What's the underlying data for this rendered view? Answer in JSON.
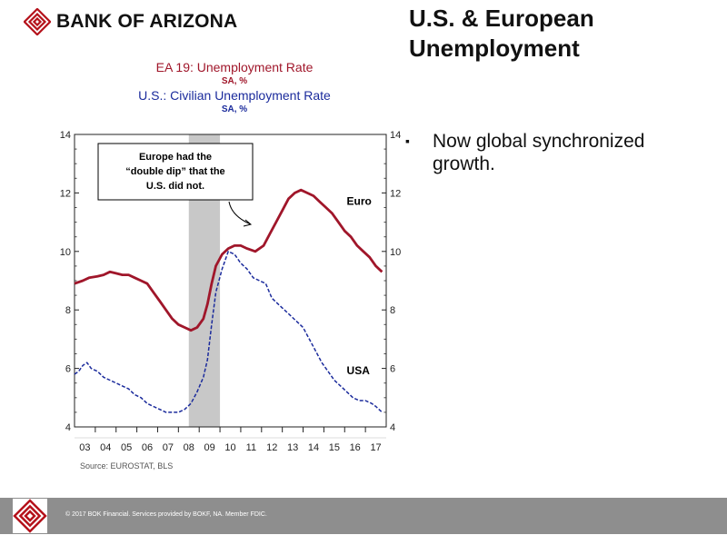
{
  "brand": {
    "name": "BANK OF ARIZONA",
    "color": "#b5121b",
    "logo_icon": "bank-of-arizona-logo-icon"
  },
  "slide": {
    "title": "U.S. & European Unemployment"
  },
  "bullets": [
    {
      "text": "Now global synchronized growth."
    }
  ],
  "footer": {
    "text": "© 2017 BOK Financial. Services provided by BOKF, NA. Member FDIC.",
    "bar_color": "#8e8e8e"
  },
  "chart_data": {
    "type": "line",
    "title": "EA 19: Unemployment Rate",
    "title_sub": "SA, %",
    "title2": "U.S.: Civilian Unemployment Rate",
    "title2_sub": "SA, %",
    "source": "Source:  EUROSTAT, BLS",
    "x_ticks": [
      "03",
      "04",
      "05",
      "06",
      "07",
      "08",
      "09",
      "10",
      "11",
      "12",
      "13",
      "14",
      "15",
      "16",
      "17"
    ],
    "xlim": [
      2002.5,
      2017.5
    ],
    "ylim": [
      4,
      14
    ],
    "y_ticks": [
      4,
      6,
      8,
      10,
      12,
      14
    ],
    "shaded_region": [
      2008.0,
      2009.5
    ],
    "grid": false,
    "annotation": "Europe had the “double dip” that the U.S. did not.",
    "series": [
      {
        "name": "Euro",
        "color": "#a0162a",
        "style": "solid",
        "x": [
          2002.5,
          2002.9,
          2003.2,
          2003.6,
          2003.9,
          2004.2,
          2004.5,
          2004.8,
          2005.1,
          2005.4,
          2005.7,
          2006.0,
          2006.3,
          2006.6,
          2006.9,
          2007.2,
          2007.5,
          2007.8,
          2008.1,
          2008.4,
          2008.7,
          2008.9,
          2009.1,
          2009.3,
          2009.6,
          2009.9,
          2010.2,
          2010.5,
          2010.8,
          2011.2,
          2011.6,
          2011.9,
          2012.2,
          2012.5,
          2012.8,
          2013.1,
          2013.4,
          2013.7,
          2014.0,
          2014.3,
          2014.6,
          2014.9,
          2015.2,
          2015.5,
          2015.8,
          2016.1,
          2016.4,
          2016.7,
          2017.0,
          2017.3
        ],
        "values": [
          8.9,
          9.0,
          9.1,
          9.15,
          9.2,
          9.3,
          9.25,
          9.2,
          9.2,
          9.1,
          9.0,
          8.9,
          8.6,
          8.3,
          8.0,
          7.7,
          7.5,
          7.4,
          7.3,
          7.4,
          7.7,
          8.2,
          8.9,
          9.5,
          9.9,
          10.1,
          10.2,
          10.2,
          10.1,
          10.0,
          10.2,
          10.6,
          11.0,
          11.4,
          11.8,
          12.0,
          12.1,
          12.0,
          11.9,
          11.7,
          11.5,
          11.3,
          11.0,
          10.7,
          10.5,
          10.2,
          10.0,
          9.8,
          9.5,
          9.3
        ]
      },
      {
        "name": "USA",
        "color": "#1b2b9c",
        "style": "dashed",
        "x": [
          2002.5,
          2002.7,
          2002.9,
          2003.1,
          2003.3,
          2003.6,
          2003.9,
          2004.2,
          2004.5,
          2004.8,
          2005.1,
          2005.4,
          2005.7,
          2006.0,
          2006.3,
          2006.6,
          2006.9,
          2007.2,
          2007.5,
          2007.8,
          2008.1,
          2008.4,
          2008.7,
          2008.9,
          2009.1,
          2009.3,
          2009.6,
          2009.9,
          2010.2,
          2010.5,
          2010.8,
          2011.1,
          2011.4,
          2011.7,
          2012.0,
          2012.3,
          2012.6,
          2012.9,
          2013.2,
          2013.5,
          2013.8,
          2014.1,
          2014.4,
          2014.7,
          2015.0,
          2015.3,
          2015.6,
          2015.9,
          2016.2,
          2016.5,
          2016.8,
          2017.0,
          2017.3
        ],
        "values": [
          5.8,
          5.9,
          6.1,
          6.2,
          6.0,
          5.9,
          5.7,
          5.6,
          5.5,
          5.4,
          5.3,
          5.1,
          5.0,
          4.8,
          4.7,
          4.6,
          4.5,
          4.5,
          4.5,
          4.6,
          4.8,
          5.2,
          5.7,
          6.3,
          7.5,
          8.6,
          9.4,
          10.0,
          9.9,
          9.6,
          9.4,
          9.1,
          9.0,
          8.9,
          8.4,
          8.2,
          8.0,
          7.8,
          7.6,
          7.4,
          7.0,
          6.6,
          6.2,
          5.9,
          5.6,
          5.4,
          5.2,
          5.0,
          4.9,
          4.9,
          4.8,
          4.7,
          4.5
        ]
      }
    ],
    "labels": {
      "euro": "Euro",
      "usa": "USA"
    }
  }
}
